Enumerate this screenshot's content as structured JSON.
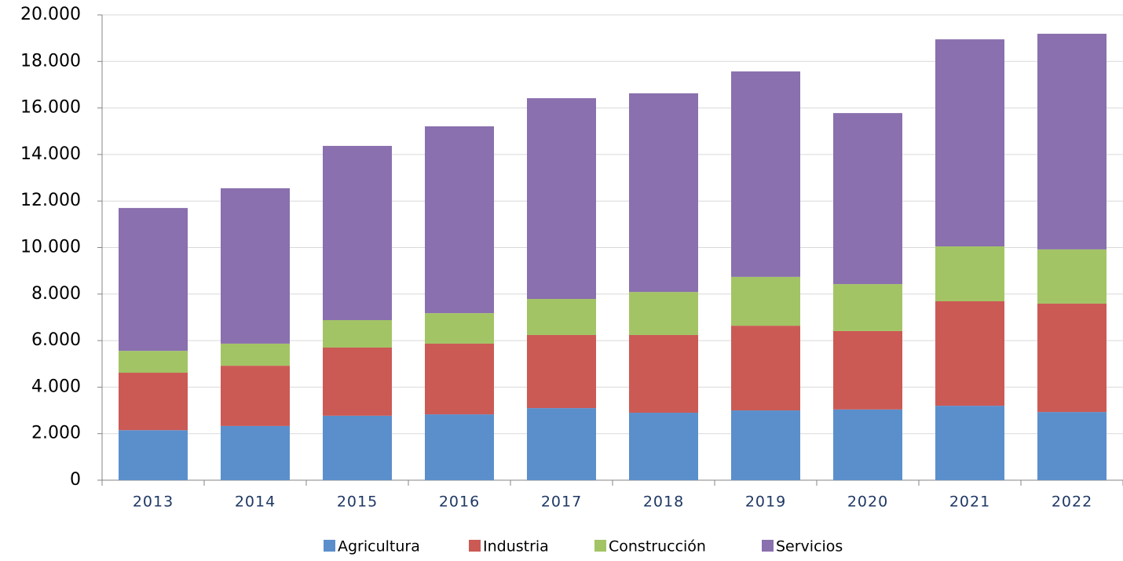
{
  "chart_data": {
    "type": "stacked_bar",
    "categories": [
      "2013",
      "2014",
      "2015",
      "2016",
      "2017",
      "2018",
      "2019",
      "2020",
      "2021",
      "2022"
    ],
    "series": [
      {
        "name": "Agricultura",
        "color": "#5b8fcb",
        "values": [
          2150,
          2330,
          2770,
          2830,
          3100,
          2900,
          3000,
          3040,
          3200,
          2930
        ]
      },
      {
        "name": "Industria",
        "color": "#cb5a55",
        "values": [
          2470,
          2590,
          2930,
          3040,
          3140,
          3340,
          3640,
          3370,
          4490,
          4660
        ]
      },
      {
        "name": "Construcción",
        "color": "#a3c465",
        "values": [
          940,
          950,
          1180,
          1310,
          1550,
          1850,
          2100,
          2020,
          2360,
          2330
        ]
      },
      {
        "name": "Servicios",
        "color": "#8a70ae",
        "values": [
          6140,
          6680,
          7490,
          8030,
          8630,
          8540,
          8830,
          7350,
          8900,
          9270
        ]
      }
    ],
    "ylim": [
      0,
      20000
    ],
    "yticks": [
      0,
      {
        "value": 2000,
        "label": "2.000"
      },
      {
        "value": 4000,
        "label": "4.000"
      },
      {
        "value": 6000,
        "label": "6.000"
      },
      {
        "value": 8000,
        "label": "8.000"
      },
      {
        "value": 10000,
        "label": "10.000"
      },
      {
        "value": 12000,
        "label": "12.000"
      },
      {
        "value": 14000,
        "label": "14.000"
      },
      {
        "value": 16000,
        "label": "16.000"
      },
      {
        "value": 18000,
        "label": "18.000"
      },
      {
        "value": 20000,
        "label": "20.000"
      }
    ],
    "grid": true,
    "legend": "bottom"
  }
}
